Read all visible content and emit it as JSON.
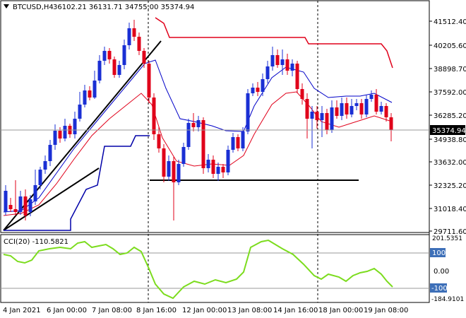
{
  "header": {
    "symbol": "BTCUSD,H4",
    "ohlc": "36102.21 36131.71 34755.00 35374.94"
  },
  "price_axis": {
    "labels": [
      "41512.40",
      "40205.60",
      "38898.70",
      "37592.00",
      "36285.20",
      "34938.80",
      "33632.00",
      "32325.20",
      "31018.40",
      "29711.60"
    ],
    "current_price": "35374.94"
  },
  "indicator": {
    "label": "CCI(20) -110.5821",
    "scale_top": "201.5351",
    "labels": [
      "100",
      "0.00",
      "-100",
      "-184.9101"
    ]
  },
  "time_axis": {
    "labels": [
      "4 Jan 2021",
      "6 Jan 00:00",
      "7 Jan 08:00",
      "8 Jan 16:00",
      "12 Jan 00:00",
      "13 Jan 08:00",
      "14 Jan 16:00",
      "18 Jan 00:00",
      "19 Jan 08:00"
    ]
  },
  "colors": {
    "bull": "#1a2fd4",
    "bear": "#e0001a",
    "ma_fast": "#e0001a",
    "ma_slow": "#0000c8",
    "envelope": "#0000a8",
    "stop_line": "#e0001a",
    "cci": "#7cdc1e"
  }
}
